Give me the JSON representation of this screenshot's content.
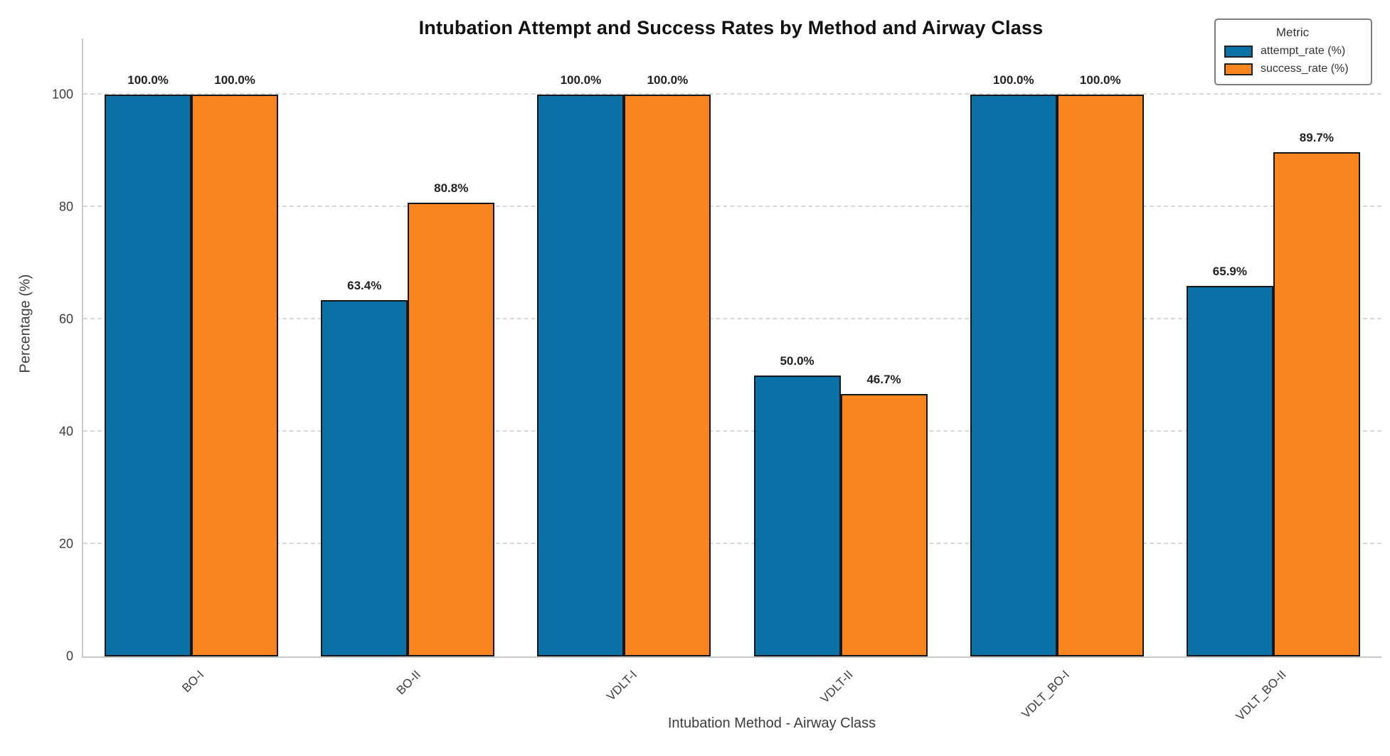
{
  "chart_data": {
    "type": "bar",
    "title": "Intubation Attempt and Success Rates by Method and Airway Class",
    "xlabel": "Intubation Method - Airway Class",
    "ylabel": "Percentage (%)",
    "categories": [
      "BO-I",
      "BO-II",
      "VDLT-I",
      "VDLT-II",
      "VDLT_BO-I",
      "VDLT_BO-II"
    ],
    "series": [
      {
        "name": "attempt_rate (%)",
        "color": "#0a72a6",
        "values": [
          100.0,
          63.4,
          100.0,
          50.0,
          100.0,
          65.9
        ],
        "labels": [
          "100.0%",
          "63.4%",
          "100.0%",
          "50.0%",
          "100.0%",
          "65.9%"
        ]
      },
      {
        "name": "success_rate (%)",
        "color": "#f8861f",
        "values": [
          100.0,
          80.8,
          100.0,
          46.7,
          100.0,
          89.7
        ],
        "labels": [
          "100.0%",
          "80.8%",
          "100.0%",
          "46.7%",
          "100.0%",
          "89.7%"
        ]
      }
    ],
    "yticks": [
      0,
      20,
      40,
      60,
      80,
      100
    ],
    "ylim": [
      0,
      110
    ],
    "grid": {
      "axis": "y",
      "style": "dashed"
    },
    "legend": {
      "title": "Metric",
      "position": "upper right"
    }
  },
  "style_colors": {
    "bar_edge": "#161616",
    "gridline": "#d8d8d8",
    "spine": "#c9c9c9",
    "tick_text": "#3d3d3d",
    "value_label_text": "#222222",
    "legend_border": "#7d7d7d"
  }
}
